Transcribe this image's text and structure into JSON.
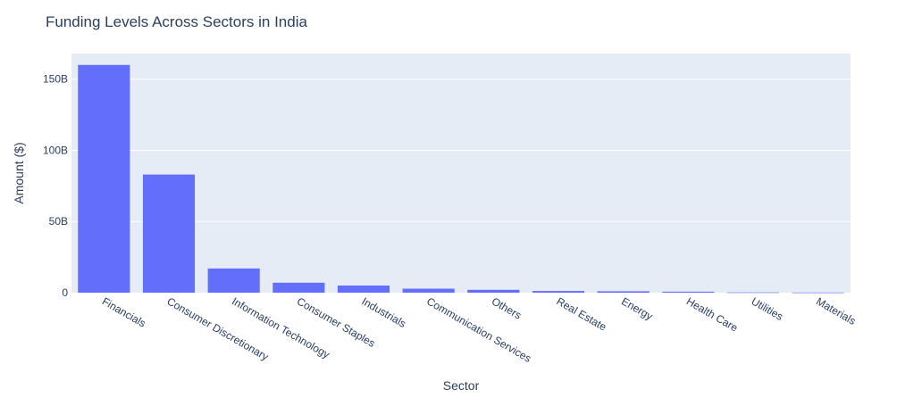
{
  "chart_data": {
    "type": "bar",
    "title": "Funding Levels Across Sectors in India",
    "xlabel": "Sector",
    "ylabel": "Amount ($)",
    "categories": [
      "Financials",
      "Consumer Discretionary",
      "Information Technology",
      "Consumer Staples",
      "Industrials",
      "Communication Services",
      "Others",
      "Real Estate",
      "Energy",
      "Health Care",
      "Utilities",
      "Materials"
    ],
    "values": [
      160000000000,
      83000000000,
      17000000000,
      7000000000,
      5000000000,
      2800000000,
      2000000000,
      1200000000,
      1000000000,
      700000000,
      200000000,
      100000000
    ],
    "ylim": [
      0,
      168000000000
    ],
    "y_ticks": [
      0,
      50000000000,
      100000000000,
      150000000000
    ],
    "y_tick_labels": [
      "0",
      "50B",
      "100B",
      "150B"
    ],
    "grid": true,
    "colors": {
      "bar": "#636efa",
      "plot_background": "#e5ecf6",
      "gridline": "#ffffff",
      "text": "#2a3f5f"
    }
  }
}
